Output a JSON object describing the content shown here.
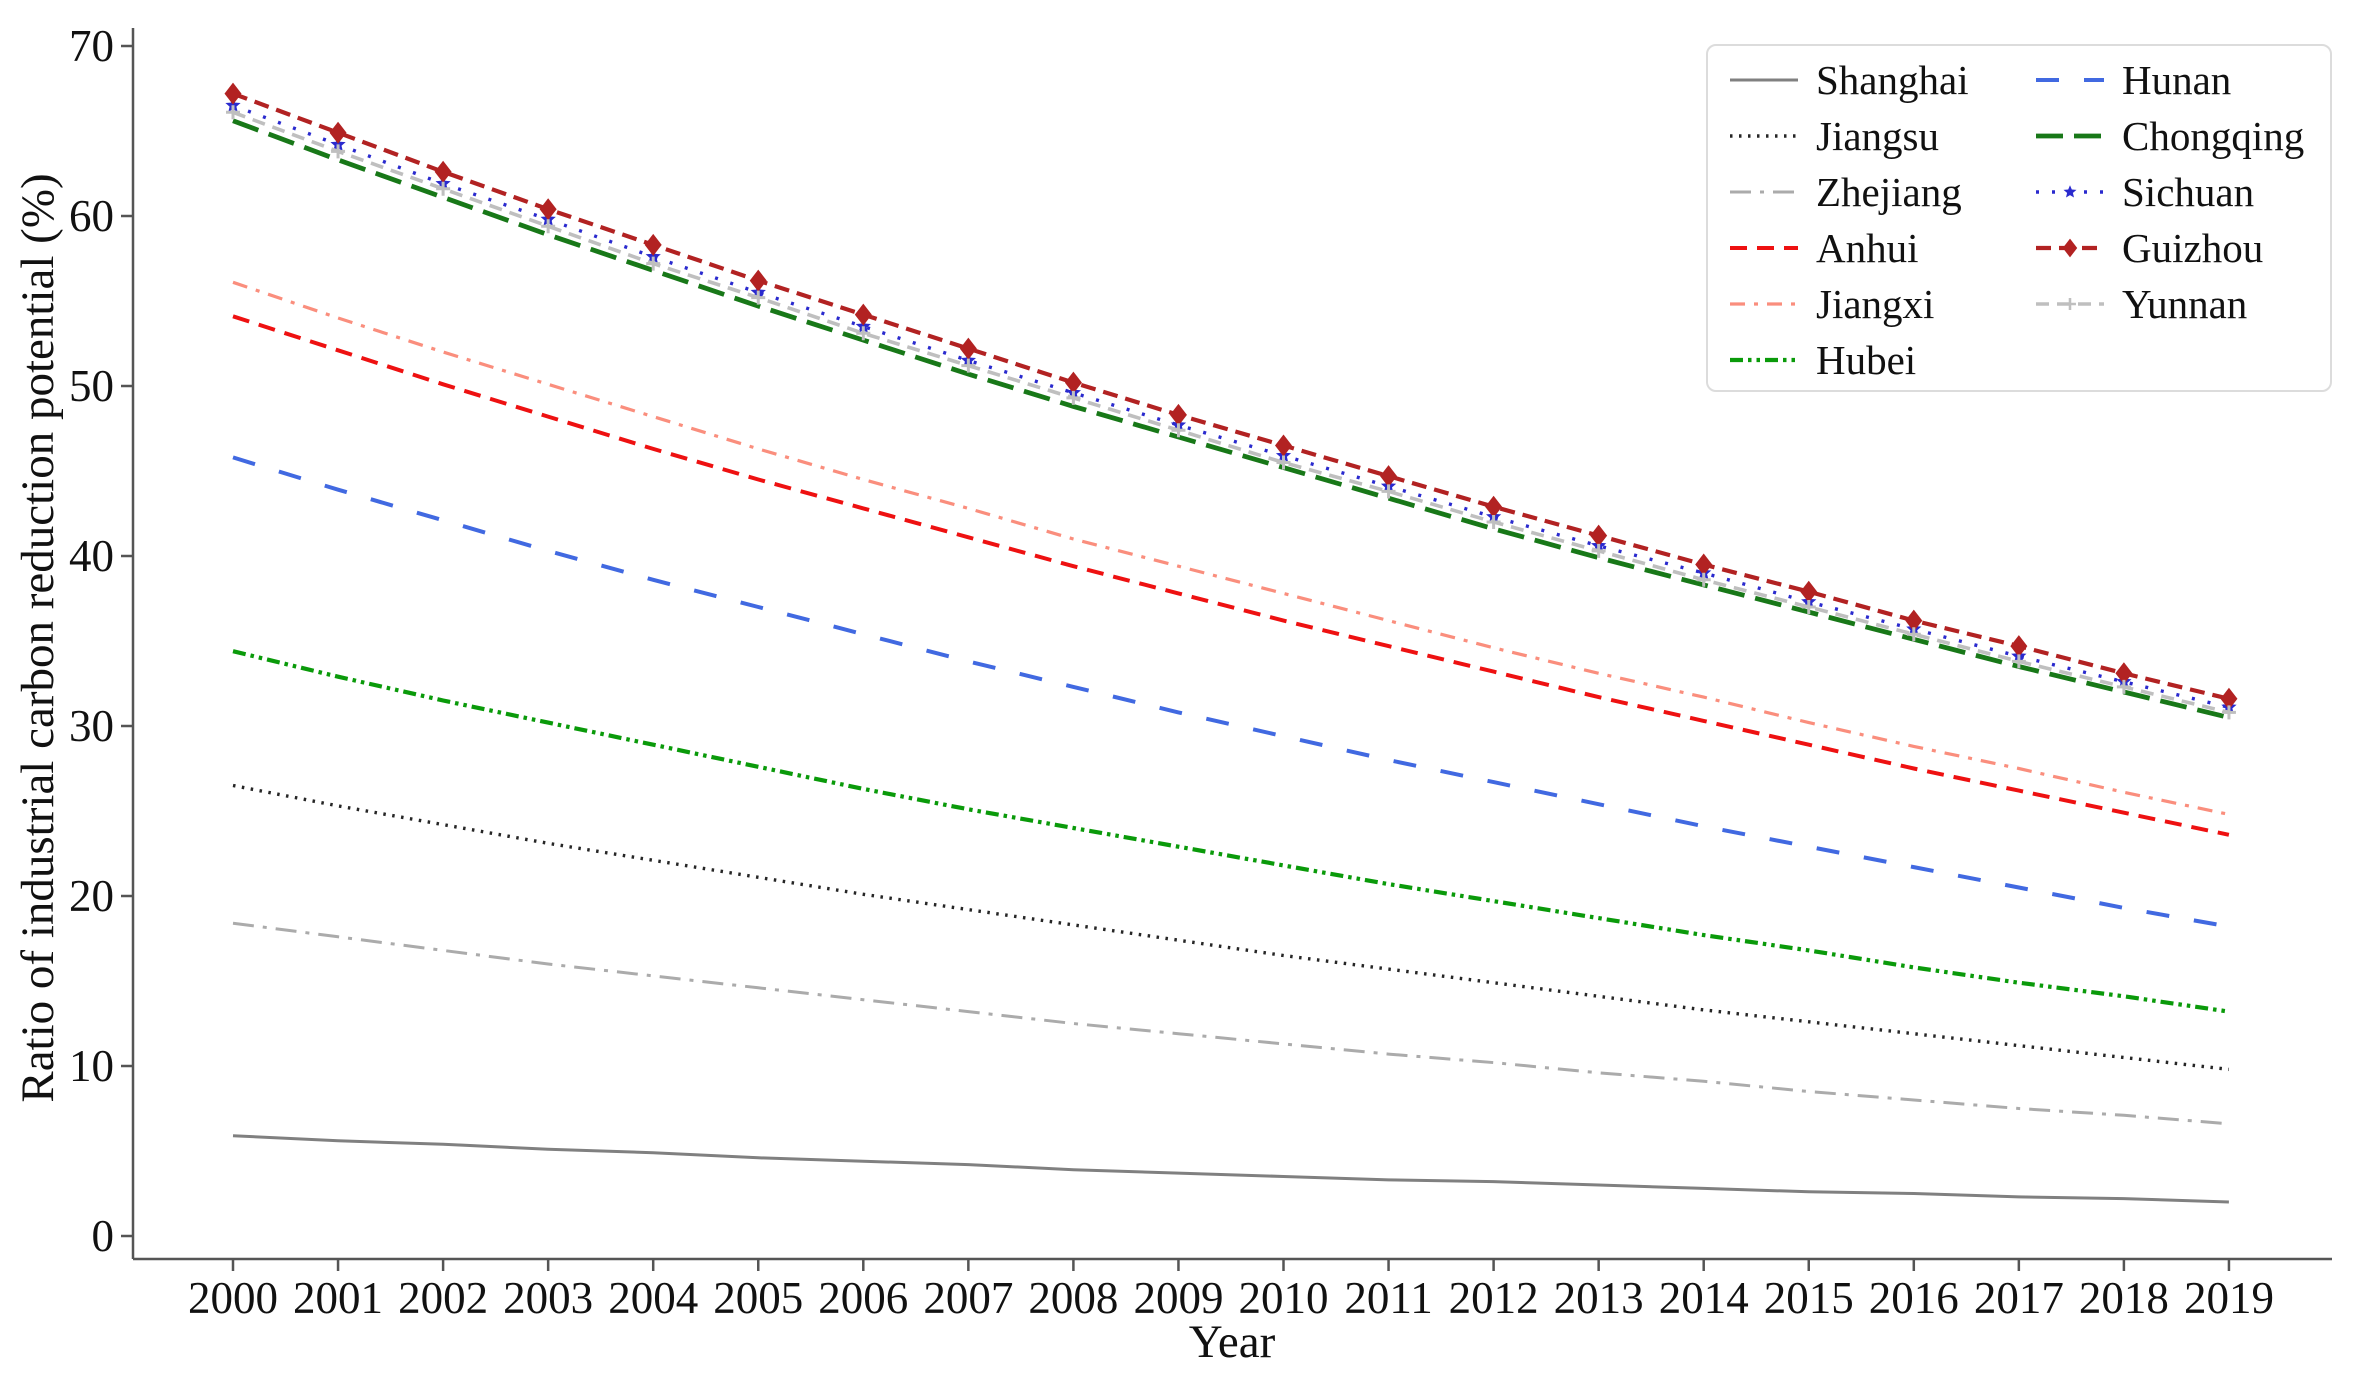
{
  "chart_data": {
    "type": "line",
    "title": "",
    "xlabel": "Year",
    "ylabel": "Ratio of industrial carbon reduction potential (%)",
    "x": [
      2000,
      2001,
      2002,
      2003,
      2004,
      2005,
      2006,
      2007,
      2008,
      2009,
      2010,
      2011,
      2012,
      2013,
      2014,
      2015,
      2016,
      2017,
      2018,
      2019
    ],
    "y_ticks": [
      0,
      10,
      20,
      30,
      40,
      50,
      60,
      70
    ],
    "ylim": [
      0,
      70
    ],
    "grid": false,
    "legend_position": "upper right",
    "legend_columns": 2,
    "axis_color": "#555555",
    "text_color": "#111111",
    "series": [
      {
        "name": "Shanghai",
        "color": "#808080",
        "linewidth": 3,
        "dash": null,
        "marker": null,
        "values": [
          5.9,
          5.6,
          5.4,
          5.1,
          4.9,
          4.6,
          4.4,
          4.2,
          3.9,
          3.7,
          3.5,
          3.3,
          3.2,
          3.0,
          2.8,
          2.6,
          2.5,
          2.3,
          2.2,
          2.0
        ]
      },
      {
        "name": "Jiangsu",
        "color": "#262626",
        "linewidth": 3.4,
        "dash": "2.5 6.5",
        "marker": null,
        "values": [
          26.5,
          25.3,
          24.2,
          23.1,
          22.1,
          21.1,
          20.1,
          19.2,
          18.3,
          17.4,
          16.5,
          15.7,
          14.9,
          14.1,
          13.3,
          12.6,
          11.9,
          11.2,
          10.5,
          9.8
        ]
      },
      {
        "name": "Zhejiang",
        "color": "#ababab",
        "linewidth": 3,
        "dash": "21 9 4 9",
        "marker": null,
        "values": [
          18.4,
          17.6,
          16.8,
          16.0,
          15.3,
          14.6,
          13.9,
          13.2,
          12.5,
          11.9,
          11.3,
          10.7,
          10.2,
          9.6,
          9.1,
          8.5,
          8.0,
          7.5,
          7.1,
          6.6
        ]
      },
      {
        "name": "Anhui",
        "color": "#ee1111",
        "linewidth": 4,
        "dash": "17 10",
        "marker": null,
        "values": [
          54.1,
          52.1,
          50.1,
          48.2,
          46.3,
          44.5,
          42.8,
          41.1,
          39.4,
          37.8,
          36.2,
          34.7,
          33.2,
          31.7,
          30.3,
          28.9,
          27.5,
          26.2,
          24.9,
          23.6
        ]
      },
      {
        "name": "Jiangxi",
        "color": "#fa8e7d",
        "linewidth": 3.2,
        "dash": "15 9 4 9",
        "marker": null,
        "values": [
          56.1,
          54.0,
          52.0,
          50.1,
          48.2,
          46.3,
          44.5,
          42.8,
          41.0,
          39.4,
          37.8,
          36.2,
          34.6,
          33.1,
          31.7,
          30.2,
          28.8,
          27.5,
          26.1,
          24.8
        ]
      },
      {
        "name": "Hubei",
        "color": "#0a9a0a",
        "linewidth": 4.2,
        "dash": "13 5 3.5 5 3.5 5",
        "marker": null,
        "values": [
          34.4,
          32.9,
          31.5,
          30.2,
          28.9,
          27.6,
          26.3,
          25.1,
          24.0,
          22.9,
          21.8,
          20.7,
          19.7,
          18.7,
          17.7,
          16.8,
          15.8,
          14.9,
          14.1,
          13.2
        ]
      },
      {
        "name": "Hunan",
        "color": "#4169e1",
        "linewidth": 4,
        "dash": "23 25",
        "marker": null,
        "values": [
          45.8,
          43.9,
          42.1,
          40.3,
          38.6,
          37.0,
          35.4,
          33.8,
          32.3,
          30.8,
          29.4,
          28.0,
          26.7,
          25.4,
          24.1,
          22.9,
          21.7,
          20.5,
          19.3,
          18.2
        ]
      },
      {
        "name": "Chongqing",
        "color": "#187818",
        "linewidth": 4.8,
        "dash": "27 11",
        "marker": null,
        "values": [
          65.6,
          63.3,
          61.1,
          58.9,
          56.8,
          54.7,
          52.7,
          50.7,
          48.8,
          47.0,
          45.2,
          43.4,
          41.6,
          39.9,
          38.3,
          36.7,
          35.1,
          33.5,
          32.0,
          30.5
        ]
      },
      {
        "name": "Sichuan",
        "color": "#2a2ace",
        "linewidth": 3.4,
        "dash": "3 13",
        "marker": "star",
        "values": [
          66.5,
          64.2,
          61.9,
          59.8,
          57.6,
          55.5,
          53.5,
          51.5,
          49.6,
          47.7,
          45.9,
          44.1,
          42.3,
          40.6,
          39.0,
          37.3,
          35.7,
          34.1,
          32.6,
          31.1
        ]
      },
      {
        "name": "Guizhou",
        "color": "#b22222",
        "linewidth": 4.2,
        "dash": "15 8",
        "marker": "diamond",
        "values": [
          67.2,
          64.9,
          62.6,
          60.4,
          58.3,
          56.2,
          54.2,
          52.2,
          50.2,
          48.3,
          46.5,
          44.7,
          42.9,
          41.2,
          39.5,
          37.9,
          36.2,
          34.7,
          33.1,
          31.6
        ]
      },
      {
        "name": "Yunnan",
        "color": "#bfbfbf",
        "linewidth": 3.6,
        "dash": "13 8",
        "marker": "plus",
        "values": [
          66.1,
          63.8,
          61.6,
          59.4,
          57.2,
          55.2,
          53.1,
          51.2,
          49.3,
          47.4,
          45.5,
          43.8,
          42.0,
          40.3,
          38.6,
          37.0,
          35.4,
          33.8,
          32.3,
          30.8
        ]
      }
    ]
  }
}
